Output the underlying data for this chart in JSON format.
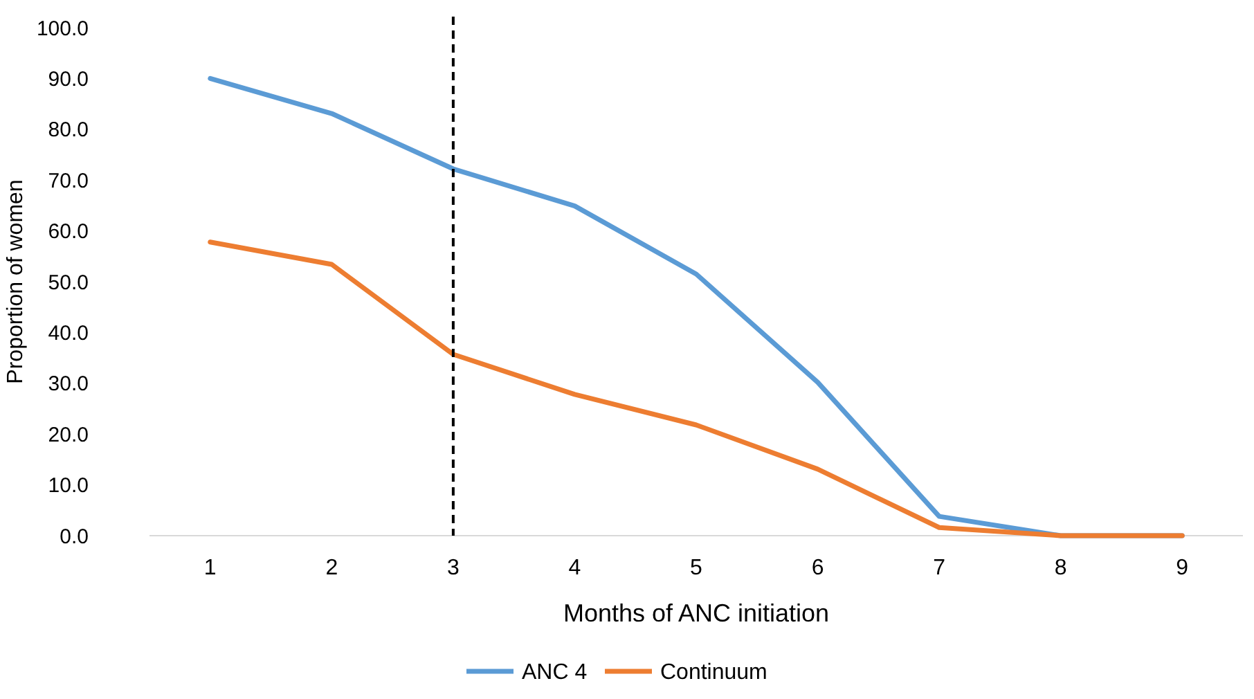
{
  "chart_data": {
    "type": "line",
    "xlabel": "Months of ANC initiation",
    "ylabel": "Proportion of women",
    "x": [
      1,
      2,
      3,
      4,
      5,
      6,
      7,
      8,
      9
    ],
    "xlim": [
      0.5,
      9.5
    ],
    "xticks": [
      1,
      2,
      3,
      4,
      5,
      6,
      7,
      8,
      9
    ],
    "ylim": [
      0,
      100
    ],
    "yticks": [
      {
        "value": 0,
        "label": "0.0"
      },
      {
        "value": 10,
        "label": "10.0"
      },
      {
        "value": 20,
        "label": "20.0"
      },
      {
        "value": 30,
        "label": "30.0"
      },
      {
        "value": 40,
        "label": "40.0"
      },
      {
        "value": 50,
        "label": "50.0"
      },
      {
        "value": 60,
        "label": "60.0"
      },
      {
        "value": 70,
        "label": "70.0"
      },
      {
        "value": 80,
        "label": "80.0"
      },
      {
        "value": 90,
        "label": "90.0"
      },
      {
        "value": 100,
        "label": "100.0"
      }
    ],
    "series": [
      {
        "name": "ANC 4",
        "color": "#5b9bd5",
        "values": [
          90,
          83.1,
          72.2,
          64.9,
          51.5,
          30.2,
          3.8,
          0,
          0
        ]
      },
      {
        "name": "Continuum",
        "color": "#ed7d31",
        "values": [
          57.8,
          53.4,
          35.7,
          27.8,
          21.8,
          13.1,
          1.6,
          0,
          0
        ]
      }
    ],
    "ref_lines": [
      {
        "axis": "x",
        "value": 3,
        "color": "#000000",
        "line_style": "dashed"
      }
    ],
    "grid": false,
    "legend": "bottom",
    "marker": "none",
    "line_style": "solid"
  }
}
